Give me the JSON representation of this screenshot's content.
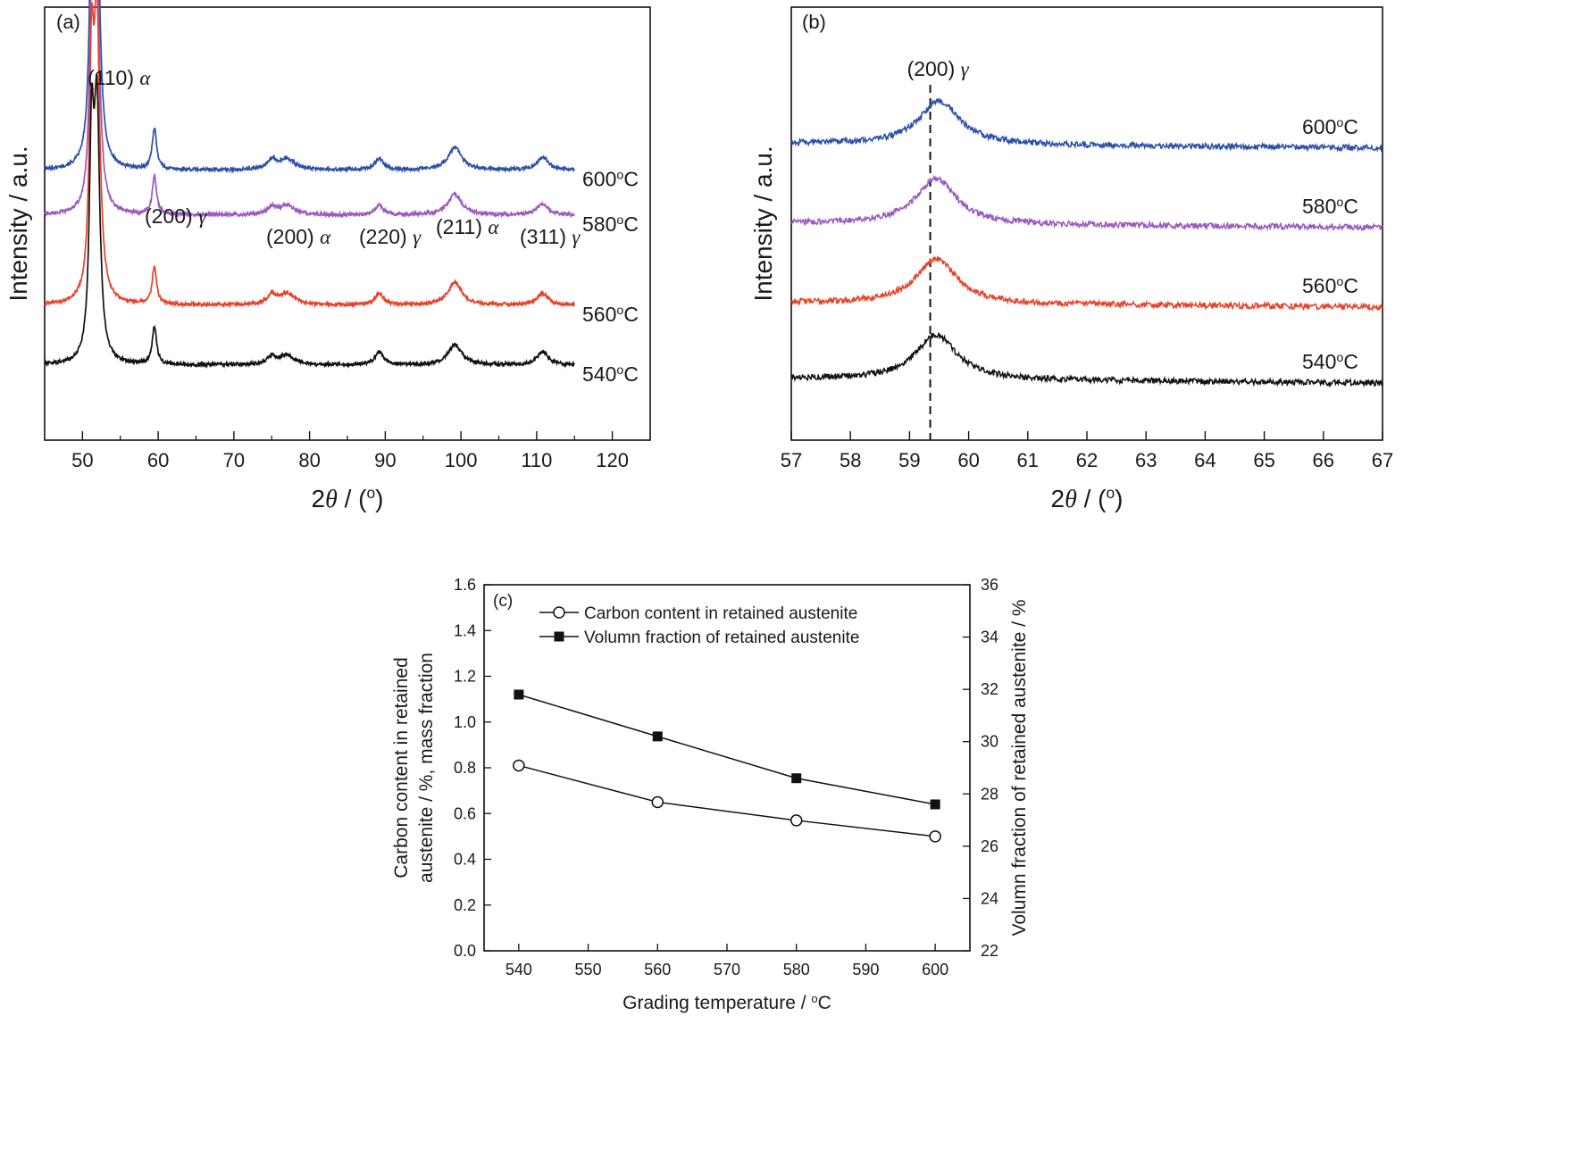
{
  "chart_data": [
    {
      "type": "line",
      "panel_label": "(a)",
      "xlabel": "2θ / (°)",
      "ylabel": "Intensity / a.u.",
      "xlim": [
        45,
        125
      ],
      "x_ticks": [
        50,
        60,
        70,
        80,
        90,
        100,
        110,
        120
      ],
      "y_ticks_shown": false,
      "x_data_range": [
        45,
        115
      ],
      "peaks": [
        {
          "label": "(110)α",
          "x": 51.9
        },
        {
          "label": "(200)γ",
          "x": 59.5
        },
        {
          "label": "(200)α",
          "x": 77.0
        },
        {
          "label": "(220)γ",
          "x": 89.2
        },
        {
          "label": "(211)α",
          "x": 99.2
        },
        {
          "label": "(311)γ",
          "x": 110.8
        }
      ],
      "series": [
        {
          "name": "600°C",
          "color": "#2b4fa8",
          "baseline": 7.2,
          "peak_heights": [
            {
              "x": 51.2,
              "h": 5.2
            },
            {
              "x": 51.9,
              "h": 7.0
            },
            {
              "x": 59.5,
              "h": 1.1
            },
            {
              "x": 75.0,
              "h": 0.25
            },
            {
              "x": 77.0,
              "h": 0.3
            },
            {
              "x": 89.2,
              "h": 0.3
            },
            {
              "x": 99.2,
              "h": 0.6
            },
            {
              "x": 110.8,
              "h": 0.35
            }
          ]
        },
        {
          "name": "580°C",
          "color": "#9b59c0",
          "baseline": 6.0,
          "peak_heights": [
            {
              "x": 51.2,
              "h": 4.6
            },
            {
              "x": 51.9,
              "h": 6.2
            },
            {
              "x": 59.5,
              "h": 1.0
            },
            {
              "x": 75.0,
              "h": 0.2
            },
            {
              "x": 77.0,
              "h": 0.25
            },
            {
              "x": 89.2,
              "h": 0.25
            },
            {
              "x": 99.2,
              "h": 0.55
            },
            {
              "x": 110.8,
              "h": 0.3
            }
          ]
        },
        {
          "name": "560°C",
          "color": "#e8412a",
          "baseline": 3.6,
          "peak_heights": [
            {
              "x": 51.2,
              "h": 5.8
            },
            {
              "x": 51.9,
              "h": 7.4
            },
            {
              "x": 59.5,
              "h": 1.0
            },
            {
              "x": 75.0,
              "h": 0.25
            },
            {
              "x": 77.0,
              "h": 0.3
            },
            {
              "x": 89.2,
              "h": 0.3
            },
            {
              "x": 99.2,
              "h": 0.6
            },
            {
              "x": 110.8,
              "h": 0.3
            }
          ]
        },
        {
          "name": "540°C",
          "color": "#111111",
          "baseline": 2.0,
          "peak_heights": [
            {
              "x": 51.2,
              "h": 5.5
            },
            {
              "x": 51.9,
              "h": 6.6
            },
            {
              "x": 59.5,
              "h": 1.0
            },
            {
              "x": 75.0,
              "h": 0.2
            },
            {
              "x": 77.0,
              "h": 0.25
            },
            {
              "x": 89.2,
              "h": 0.35
            },
            {
              "x": 99.2,
              "h": 0.55
            },
            {
              "x": 110.8,
              "h": 0.35
            }
          ]
        }
      ]
    },
    {
      "type": "line",
      "panel_label": "(b)",
      "xlabel": "2θ / (°)",
      "ylabel": "Intensity / a.u.",
      "xlim": [
        57,
        67
      ],
      "x_ticks": [
        57,
        58,
        59,
        60,
        61,
        62,
        63,
        64,
        65,
        66,
        67
      ],
      "y_ticks_shown": false,
      "reference_line": {
        "label": "(200)γ",
        "x": 59.35,
        "style": "dashed"
      },
      "series": [
        {
          "name": "600°C",
          "color": "#2b4fa8",
          "baseline": 8.2,
          "peak_x": 59.5,
          "peak_height": 1.2
        },
        {
          "name": "580°C",
          "color": "#9b59c0",
          "baseline": 6.0,
          "peak_x": 59.45,
          "peak_height": 1.25
        },
        {
          "name": "560°C",
          "color": "#e8412a",
          "baseline": 3.8,
          "peak_x": 59.45,
          "peak_height": 1.25
        },
        {
          "name": "540°C",
          "color": "#111111",
          "baseline": 1.7,
          "peak_x": 59.45,
          "peak_height": 1.25
        }
      ]
    },
    {
      "type": "line",
      "panel_label": "(c)",
      "xlabel": "Grading temperature / °C",
      "ylabel": "Carbon content in retained austenite / %, mass fraction",
      "ylabel_lines": [
        "Carbon content in retained",
        "austenite / %, mass fraction"
      ],
      "y2label": "Volumn fraction of retained austenite / %",
      "xlim": [
        535,
        605
      ],
      "x_ticks": [
        540,
        550,
        560,
        570,
        580,
        590,
        600
      ],
      "ylim": [
        0.0,
        1.6
      ],
      "y_ticks": [
        "0.0",
        "0.2",
        "0.4",
        "0.6",
        "0.8",
        "1.0",
        "1.2",
        "1.4",
        "1.6"
      ],
      "y2lim": [
        22,
        36
      ],
      "y2_ticks": [
        22,
        24,
        26,
        28,
        30,
        32,
        34,
        36
      ],
      "legend_position": "top-left",
      "x": [
        540,
        560,
        580,
        600
      ],
      "series": [
        {
          "name": "Carbon content in retained austenite",
          "axis": "left",
          "marker": "open-circle",
          "values": [
            0.81,
            0.65,
            0.57,
            0.5
          ]
        },
        {
          "name": "Volumn fraction of retained austenite",
          "axis": "right",
          "marker": "filled-square",
          "values": [
            31.8,
            30.2,
            28.6,
            27.6
          ]
        }
      ]
    }
  ]
}
